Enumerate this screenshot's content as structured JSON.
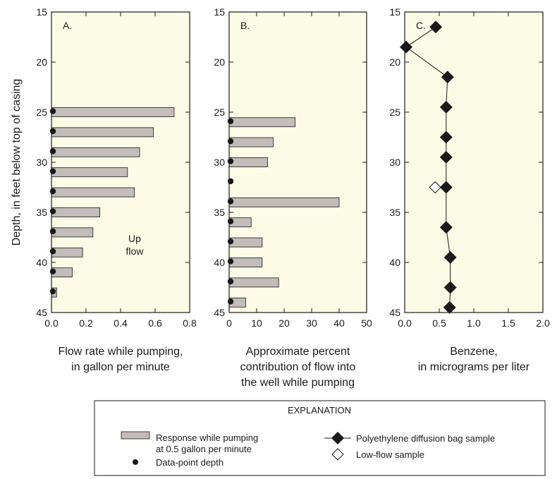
{
  "colors": {
    "plot_bg": "#fcfbe6",
    "bar_fill": "#c3bcb9",
    "marker": "#1a1a1a",
    "frame": "#1a1a1a"
  },
  "ylabel": "Depth, in feet below top of casing",
  "chart_data": [
    {
      "type": "bar",
      "orientation": "horizontal",
      "panel_label": "A.",
      "xlabel_lines": [
        "Flow rate while pumping,",
        "in gallon per minute"
      ],
      "xlim": [
        0,
        0.8
      ],
      "xticks": [
        "0.0",
        "0.2",
        "0.4",
        "0.6",
        "0.8"
      ],
      "ylim": [
        15,
        45
      ],
      "yticks": [
        "15",
        "20",
        "25",
        "30",
        "35",
        "40",
        "45"
      ],
      "annotation": [
        "Up",
        "flow"
      ],
      "bars": [
        {
          "depth": 25,
          "value": 0.71
        },
        {
          "depth": 27,
          "value": 0.59
        },
        {
          "depth": 29,
          "value": 0.51
        },
        {
          "depth": 31,
          "value": 0.44
        },
        {
          "depth": 33,
          "value": 0.48
        },
        {
          "depth": 35,
          "value": 0.28
        },
        {
          "depth": 37,
          "value": 0.24
        },
        {
          "depth": 39,
          "value": 0.18
        },
        {
          "depth": 41,
          "value": 0.12
        },
        {
          "depth": 43,
          "value": 0.03
        }
      ],
      "data_point_depths": [
        24.9,
        26.9,
        28.9,
        30.9,
        32.9,
        34.9,
        36.9,
        38.9,
        40.9,
        42.9
      ]
    },
    {
      "type": "bar",
      "orientation": "horizontal",
      "panel_label": "B.",
      "xlabel_lines": [
        "Approximate percent",
        "contribution of flow into",
        "the well while pumping"
      ],
      "xlim": [
        0,
        50
      ],
      "xticks": [
        "0",
        "10",
        "20",
        "30",
        "40",
        "50"
      ],
      "ylim": [
        15,
        45
      ],
      "yticks": [
        "15",
        "20",
        "25",
        "30",
        "35",
        "40",
        "45"
      ],
      "bars": [
        {
          "depth": 26,
          "value": 24
        },
        {
          "depth": 28,
          "value": 16
        },
        {
          "depth": 30,
          "value": 14
        },
        {
          "depth": 34,
          "value": 40
        },
        {
          "depth": 36,
          "value": 8
        },
        {
          "depth": 38,
          "value": 12
        },
        {
          "depth": 40,
          "value": 12
        },
        {
          "depth": 42,
          "value": 18
        },
        {
          "depth": 44,
          "value": 6
        }
      ],
      "data_point_depths": [
        25.9,
        27.9,
        29.9,
        31.9,
        33.9,
        35.9,
        37.9,
        39.9,
        41.9,
        43.9
      ]
    },
    {
      "type": "line",
      "panel_label": "C.",
      "xlabel_lines": [
        "Benzene,",
        "in micrograms per liter"
      ],
      "xlim": [
        0,
        2.0
      ],
      "xticks": [
        "0.0",
        "0.5",
        "1.0",
        "1.5",
        "2.0"
      ],
      "ylim": [
        15,
        45
      ],
      "yticks": [
        "15",
        "20",
        "25",
        "30",
        "35",
        "40",
        "45"
      ],
      "series": [
        {
          "name": "Polyethylene diffusion bag sample",
          "points": [
            {
              "x": 0.45,
              "depth": 16.5
            },
            {
              "x": 0.02,
              "depth": 18.5
            },
            {
              "x": 0.62,
              "depth": 21.5
            },
            {
              "x": 0.6,
              "depth": 24.5
            },
            {
              "x": 0.6,
              "depth": 27.5
            },
            {
              "x": 0.6,
              "depth": 29.5
            },
            {
              "x": 0.6,
              "depth": 32.5
            },
            {
              "x": 0.6,
              "depth": 36.5
            },
            {
              "x": 0.66,
              "depth": 39.5
            },
            {
              "x": 0.66,
              "depth": 42.5
            },
            {
              "x": 0.65,
              "depth": 44.5
            }
          ]
        },
        {
          "name": "Low-flow sample",
          "points": [
            {
              "x": 0.44,
              "depth": 32.5
            }
          ]
        }
      ]
    }
  ],
  "legend": {
    "title": "EXPLANATION",
    "bar_label_lines": [
      "Response while pumping",
      "at 0.5 gallon per minute"
    ],
    "dot_label": "Data-point depth",
    "bag_label": "Polyethylene diffusion bag sample",
    "lowflow_label": "Low-flow sample"
  }
}
